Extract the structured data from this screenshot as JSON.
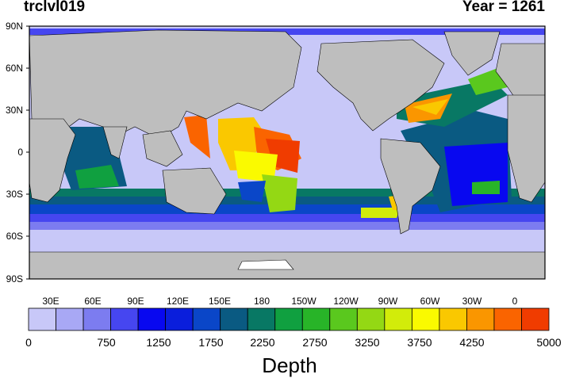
{
  "title": {
    "variable": "trclvl019",
    "year": "Year = 1261"
  },
  "map": {
    "lat_labels": [
      "90N",
      "60N",
      "30N",
      "0",
      "30S",
      "60S",
      "90S"
    ],
    "lon_labels": [
      "30E",
      "60E",
      "90E",
      "120E",
      "150E",
      "180",
      "150W",
      "120W",
      "90W",
      "60W",
      "30W",
      "0"
    ],
    "land_color": "#bebebe",
    "ice_color": "#ffffff"
  },
  "colorbar": {
    "title": "Depth",
    "labels": [
      "0",
      "750",
      "1250",
      "1750",
      "2250",
      "2750",
      "3250",
      "3750",
      "4250",
      "5000"
    ],
    "colors": [
      "#c8c8f8",
      "#a8a8f5",
      "#7c7cf0",
      "#4646f0",
      "#0808f0",
      "#0a1edc",
      "#0a46c8",
      "#0a5a82",
      "#087864",
      "#10a040",
      "#28b428",
      "#5ac81e",
      "#94d814",
      "#d2ec0a",
      "#fafa00",
      "#fac800",
      "#fa9600",
      "#fa6400",
      "#f03c00"
    ]
  }
}
